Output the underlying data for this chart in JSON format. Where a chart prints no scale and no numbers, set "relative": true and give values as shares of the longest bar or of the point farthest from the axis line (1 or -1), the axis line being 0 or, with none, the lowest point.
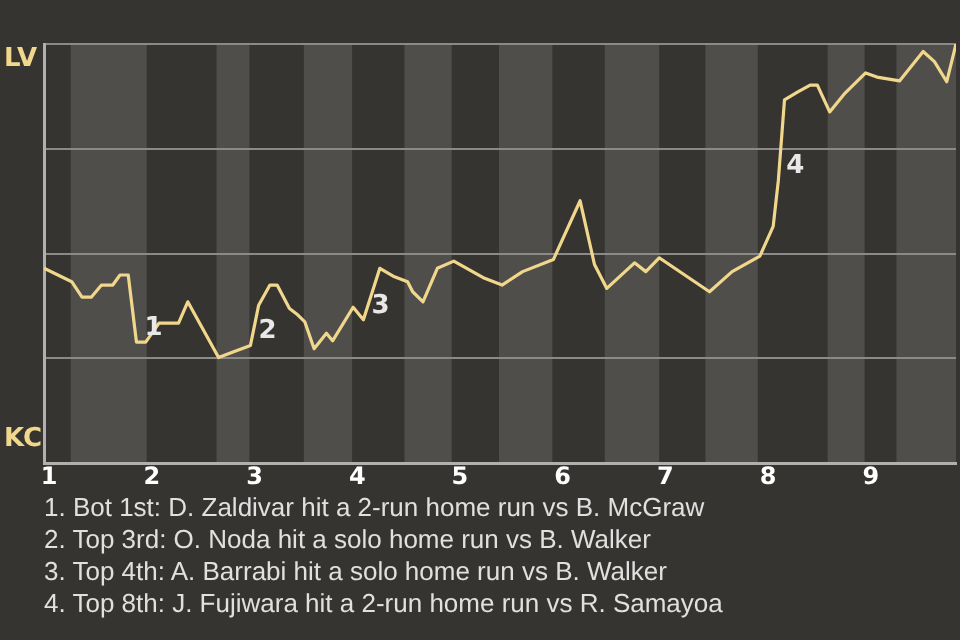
{
  "chart_data": {
    "type": "line",
    "relative": true,
    "x": [
      0.95,
      1.22,
      1.32,
      1.41,
      1.51,
      1.62,
      1.69,
      1.77,
      1.85,
      1.94,
      2.07,
      2.26,
      2.35,
      2.65,
      2.79,
      2.96,
      3.04,
      3.15,
      3.22,
      3.34,
      3.41,
      3.49,
      3.58,
      3.7,
      3.76,
      3.96,
      4.06,
      4.22,
      4.35,
      4.49,
      4.54,
      4.64,
      4.78,
      4.94,
      5.24,
      5.41,
      5.61,
      5.91,
      6.17,
      6.31,
      6.43,
      6.7,
      6.81,
      6.94,
      7.43,
      7.65,
      7.92,
      8.05,
      8.1,
      8.16,
      8.29,
      8.41,
      8.48,
      8.6,
      8.75,
      8.95,
      9.06,
      9.28,
      9.51,
      9.62,
      9.74,
      9.83
    ],
    "series": [
      {
        "color": "#f0d78c",
        "values": [
          0.465,
          0.433,
          0.396,
          0.396,
          0.425,
          0.425,
          0.449,
          0.449,
          0.289,
          0.289,
          0.334,
          0.334,
          0.385,
          0.252,
          0.265,
          0.281,
          0.377,
          0.425,
          0.425,
          0.369,
          0.356,
          0.337,
          0.273,
          0.31,
          0.292,
          0.372,
          0.342,
          0.465,
          0.446,
          0.433,
          0.409,
          0.385,
          0.465,
          0.482,
          0.441,
          0.425,
          0.457,
          0.486,
          0.626,
          0.474,
          0.417,
          0.478,
          0.457,
          0.49,
          0.409,
          0.457,
          0.494,
          0.565,
          0.674,
          0.867,
          0.886,
          0.902,
          0.902,
          0.838,
          0.883,
          0.931,
          0.921,
          0.912,
          0.982,
          0.958,
          0.91,
          1
        ]
      }
    ],
    "xlim": [
      0.95,
      9.83
    ],
    "xticks": [
      1,
      2,
      3,
      4,
      5,
      6,
      7,
      8,
      9
    ],
    "grid": "y",
    "legend": false,
    "marker": "none",
    "line_style": "solid",
    "bands": [
      {
        "axis": "x",
        "from": 1.21,
        "to": 1.95,
        "color": "#4f4e4b"
      },
      {
        "axis": "x",
        "from": 2.63,
        "to": 2.95,
        "color": "#4f4e4b"
      },
      {
        "axis": "x",
        "from": 3.48,
        "to": 3.95,
        "color": "#4f4e4b"
      },
      {
        "axis": "x",
        "from": 4.46,
        "to": 4.92,
        "color": "#4f4e4b"
      },
      {
        "axis": "x",
        "from": 5.38,
        "to": 5.9,
        "color": "#4f4e4b"
      },
      {
        "axis": "x",
        "from": 6.41,
        "to": 6.94,
        "color": "#4f4e4b"
      },
      {
        "axis": "x",
        "from": 7.39,
        "to": 7.9,
        "color": "#4f4e4b"
      },
      {
        "axis": "x",
        "from": 8.58,
        "to": 8.94,
        "color": "#4f4e4b"
      },
      {
        "axis": "x",
        "from": 9.25,
        "to": 9.83,
        "color": "#4f4e4b"
      }
    ],
    "annotations": [
      "LV",
      "KC",
      {
        "text": "1",
        "x": 1.85,
        "y": 0.289
      },
      {
        "text": "2",
        "x": 2.96,
        "y": 0.281
      },
      {
        "text": "3",
        "x": 4.06,
        "y": 0.342
      },
      {
        "text": "4",
        "x": 8.1,
        "y": 0.674
      },
      "1. Bot 1st: D. Zaldivar hit a 2-run home run vs B. McGraw",
      "2. Top 3rd: O. Noda hit a solo home run vs B. Walker",
      "3. Top 4th: A. Barrabi hit a solo home run vs B. Walker",
      "4. Top 8th: J. Fujiwara hit a 2-run home run vs R. Samayoa"
    ]
  }
}
